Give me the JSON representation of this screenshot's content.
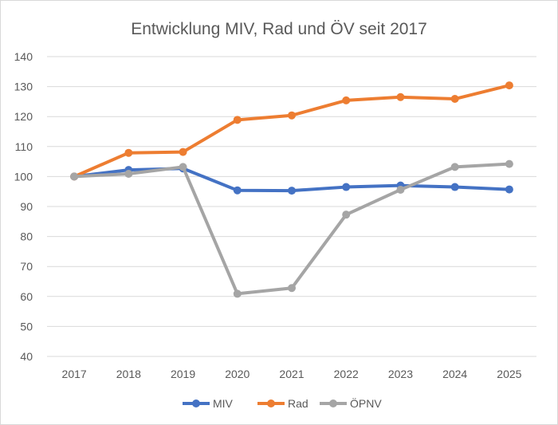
{
  "chart_data": {
    "type": "line",
    "title": "Entwicklung MIV, Rad und ÖV seit 2017",
    "xlabel": "",
    "ylabel": "",
    "categories": [
      "2017",
      "2018",
      "2019",
      "2020",
      "2021",
      "2022",
      "2023",
      "2024",
      "2025"
    ],
    "ylim": [
      40,
      140
    ],
    "yticks": [
      40,
      50,
      60,
      70,
      80,
      90,
      100,
      110,
      120,
      130,
      140
    ],
    "grid": true,
    "legend_position": "bottom",
    "series": [
      {
        "name": "MIV",
        "color": "#4472C4",
        "values": [
          100,
          102.2,
          102.7,
          95.4,
          95.3,
          96.5,
          97.0,
          96.5,
          95.7
        ]
      },
      {
        "name": "Rad",
        "color": "#ED7D31",
        "values": [
          100,
          107.9,
          108.2,
          118.9,
          120.4,
          125.4,
          126.5,
          125.9,
          130.4
        ]
      },
      {
        "name": "ÖPNV",
        "color": "#A5A5A5",
        "values": [
          100,
          100.9,
          103.2,
          60.9,
          62.8,
          87.3,
          95.6,
          103.2,
          104.2
        ]
      }
    ]
  }
}
